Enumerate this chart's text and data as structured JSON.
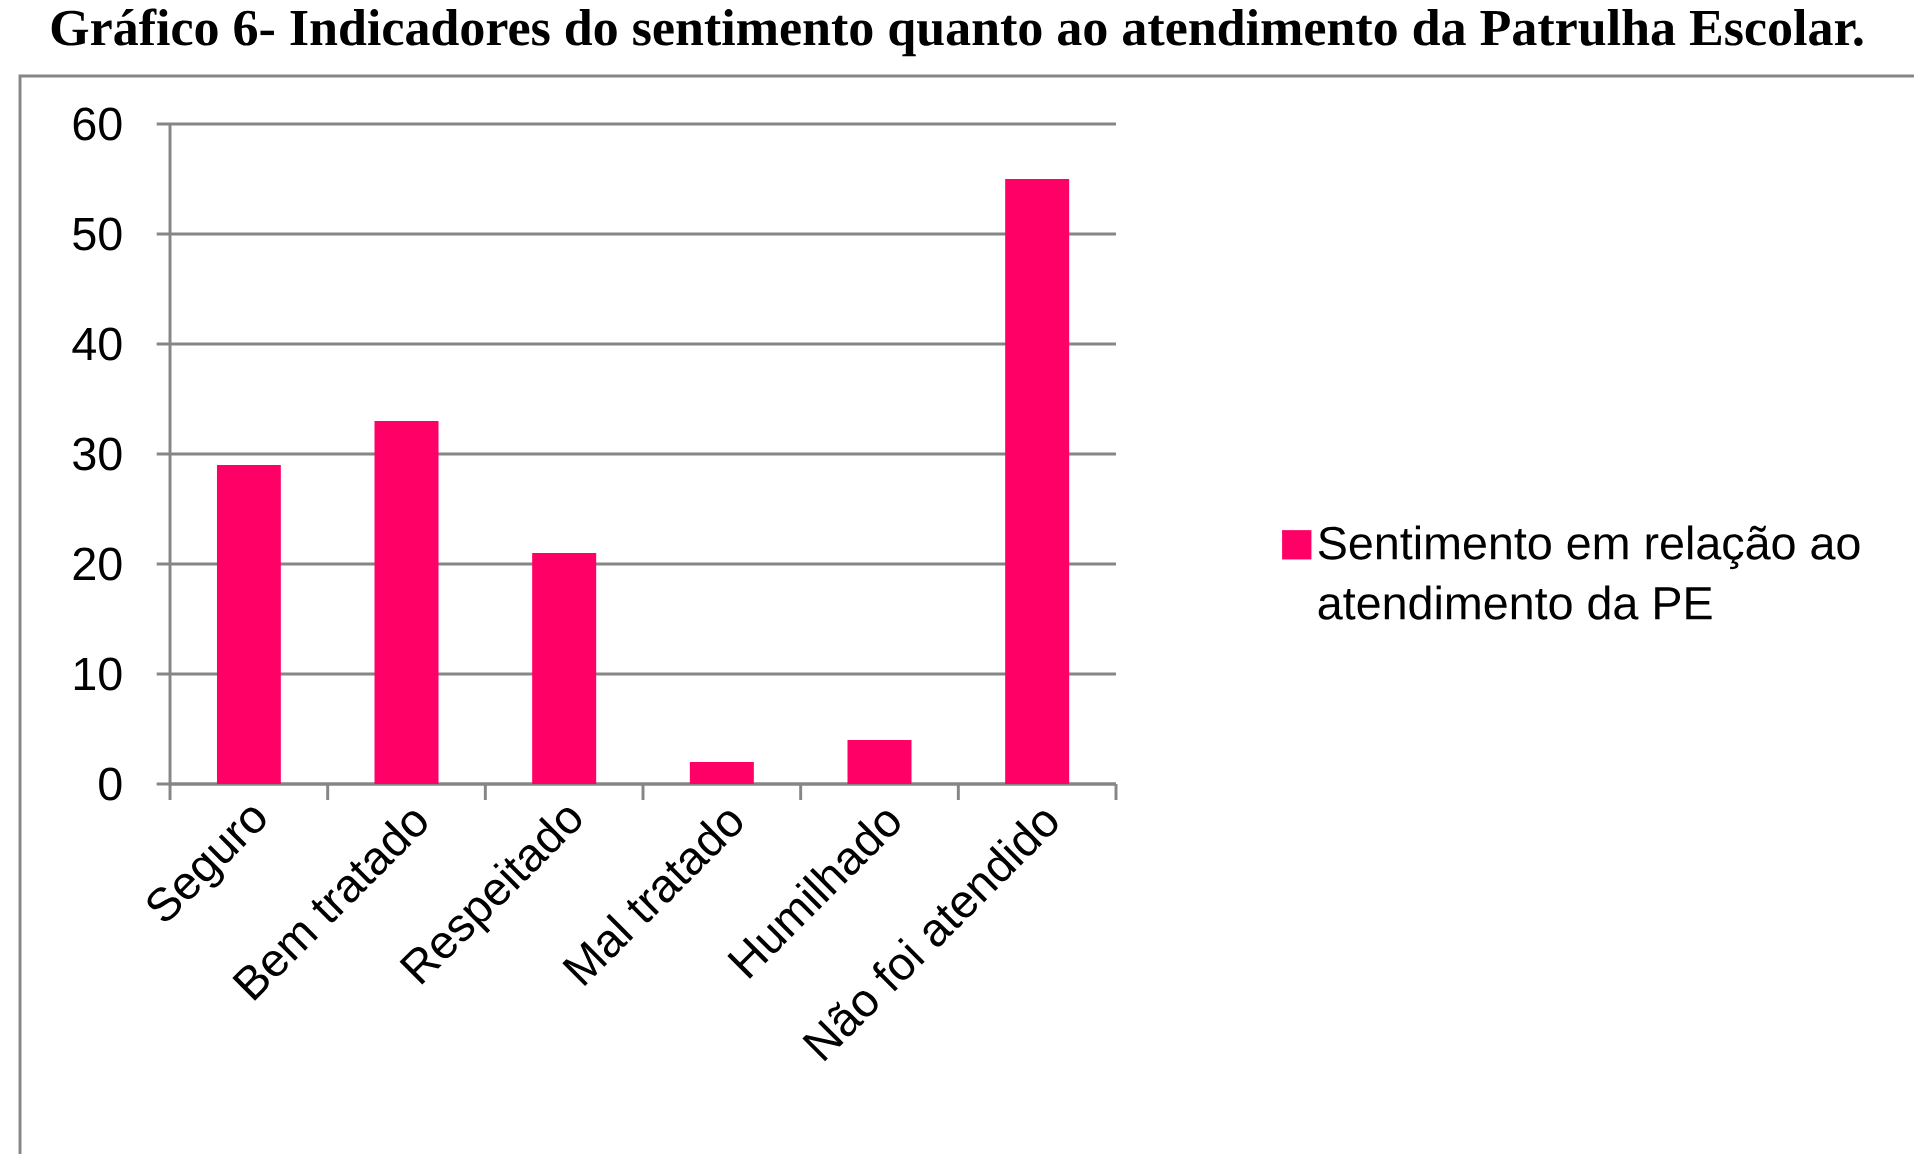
{
  "chart_data": {
    "type": "bar",
    "title": "Gráfico 6- Indicadores do sentimento quanto ao atendimento da Patrulha Escolar.",
    "categories": [
      "Seguro",
      "Bem tratado",
      "Respeitado",
      "Mal tratado",
      "Humilhado",
      "Não foi atendido"
    ],
    "series": [
      {
        "name": "Sentimento em relação ao atendimento da PE",
        "color": "#ff0066",
        "values": [
          29,
          33,
          21,
          2,
          4,
          55
        ]
      }
    ],
    "ylim": [
      0,
      60
    ],
    "yticks": [
      0,
      10,
      20,
      30,
      40,
      50,
      60
    ],
    "grid": "y",
    "legend": "right"
  }
}
